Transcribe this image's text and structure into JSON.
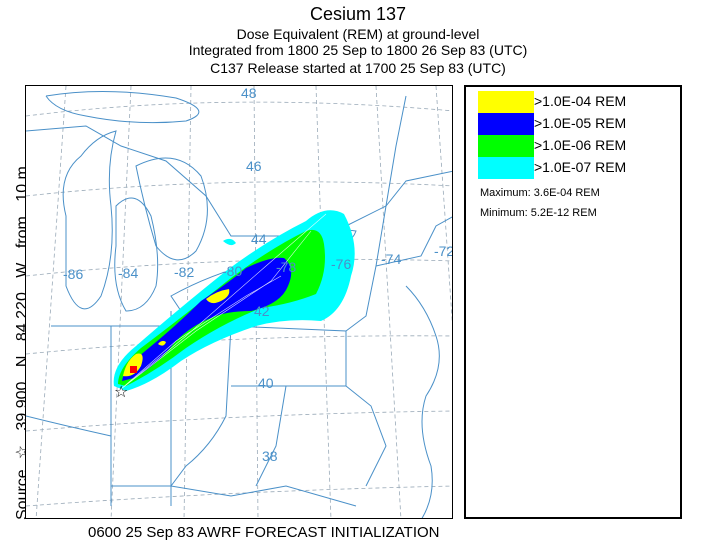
{
  "header": {
    "title": "Cesium 137",
    "line2": "Dose Equivalent (REM) at ground-level",
    "line3": "Integrated from 1800 25 Sep to 1800 26 Sep 83 (UTC)",
    "line4": "C137 Release started at 1700 25 Sep 83 (UTC)"
  },
  "source_label": {
    "prefix": "Source",
    "star": "☆",
    "lat": "39.900",
    "lat_hemi": "N",
    "lon": "84.220",
    "lon_hemi": "W",
    "from": "from",
    "height": "10 m"
  },
  "footer": {
    "text": "0600 25 Sep 83 AWRF FORECAST INITIALIZATION"
  },
  "colors": {
    "yellow": "#ffff00",
    "blue": "#0000ff",
    "green": "#00ff00",
    "cyan": "#00ffff",
    "red": "#ff0000",
    "map_lines": "#4a90c8",
    "grid": "#9aaab8"
  },
  "legend": {
    "items": [
      {
        "label": ">1.0E-04 REM",
        "color": "#ffff00"
      },
      {
        "label": ">1.0E-05 REM",
        "color": "#0000ff"
      },
      {
        "label": ">1.0E-06 REM",
        "color": "#00ff00"
      },
      {
        "label": ">1.0E-07 REM",
        "color": "#00ffff"
      }
    ],
    "maximum": "Maximum: 3.6E-04 REM",
    "minimum": "Minimum: 5.2E-12 REM"
  },
  "chart_data": {
    "type": "map",
    "contour_levels": [
      ">1.0E-04 REM",
      ">1.0E-05 REM",
      ">1.0E-06 REM",
      ">1.0E-07 REM"
    ],
    "maximum": "3.6E-04",
    "minimum": "5.2E-12",
    "source": {
      "lat": 39.9,
      "lon": -84.22
    },
    "latitude_labels": [
      "48",
      "46",
      "44",
      "42",
      "40",
      "38"
    ],
    "longitude_labels": [
      "-86",
      "-84",
      "-82",
      "-80",
      "-78",
      "-76",
      "-74",
      "-72"
    ]
  }
}
